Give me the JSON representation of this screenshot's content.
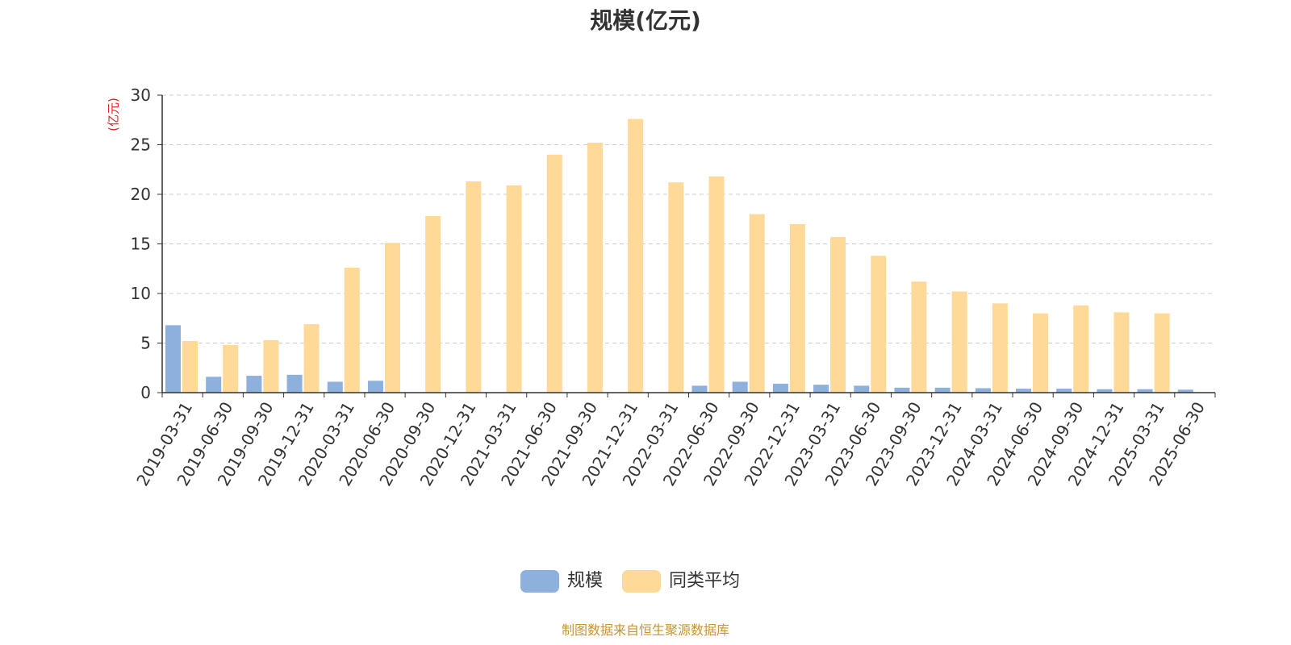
{
  "chart_data": {
    "type": "bar",
    "title": "规模(亿元)",
    "ylabel": "(亿元)",
    "xlabel": "",
    "ylim": [
      0,
      30
    ],
    "yticks": [
      0,
      5,
      10,
      15,
      20,
      25,
      30
    ],
    "grid": true,
    "legend_position": "bottom",
    "categories": [
      "2019-03-31",
      "2019-06-30",
      "2019-09-30",
      "2019-12-31",
      "2020-03-31",
      "2020-06-30",
      "2020-09-30",
      "2020-12-31",
      "2021-03-31",
      "2021-06-30",
      "2021-09-30",
      "2021-12-31",
      "2022-03-31",
      "2022-06-30",
      "2022-09-30",
      "2022-12-31",
      "2023-03-31",
      "2023-06-30",
      "2023-09-30",
      "2023-12-31",
      "2024-03-31",
      "2024-06-30",
      "2024-09-30",
      "2024-12-31",
      "2025-03-31",
      "2025-06-30"
    ],
    "series": [
      {
        "name": "规模",
        "color": "#8eb0dd",
        "values": [
          6.8,
          1.6,
          1.7,
          1.8,
          1.1,
          1.2,
          0,
          0,
          0,
          0,
          0,
          0,
          0,
          0.7,
          1.1,
          0.9,
          0.8,
          0.7,
          0.5,
          0.5,
          0.45,
          0.4,
          0.4,
          0.35,
          0.35,
          0.3
        ]
      },
      {
        "name": "同类平均",
        "color": "#ffd998",
        "values": [
          5.2,
          4.8,
          5.3,
          6.9,
          12.6,
          15.1,
          17.8,
          21.3,
          20.9,
          24.0,
          25.2,
          27.6,
          21.2,
          21.8,
          18.0,
          17.0,
          15.7,
          13.8,
          11.2,
          10.2,
          9.0,
          8.0,
          8.8,
          8.1,
          8.0,
          null
        ]
      }
    ]
  },
  "source_note": "制图数据来自恒生聚源数据库",
  "colors": {
    "axis": "#333333",
    "grid": "#cccccc",
    "ylabel": "#e02020",
    "source": "#c8962a"
  }
}
